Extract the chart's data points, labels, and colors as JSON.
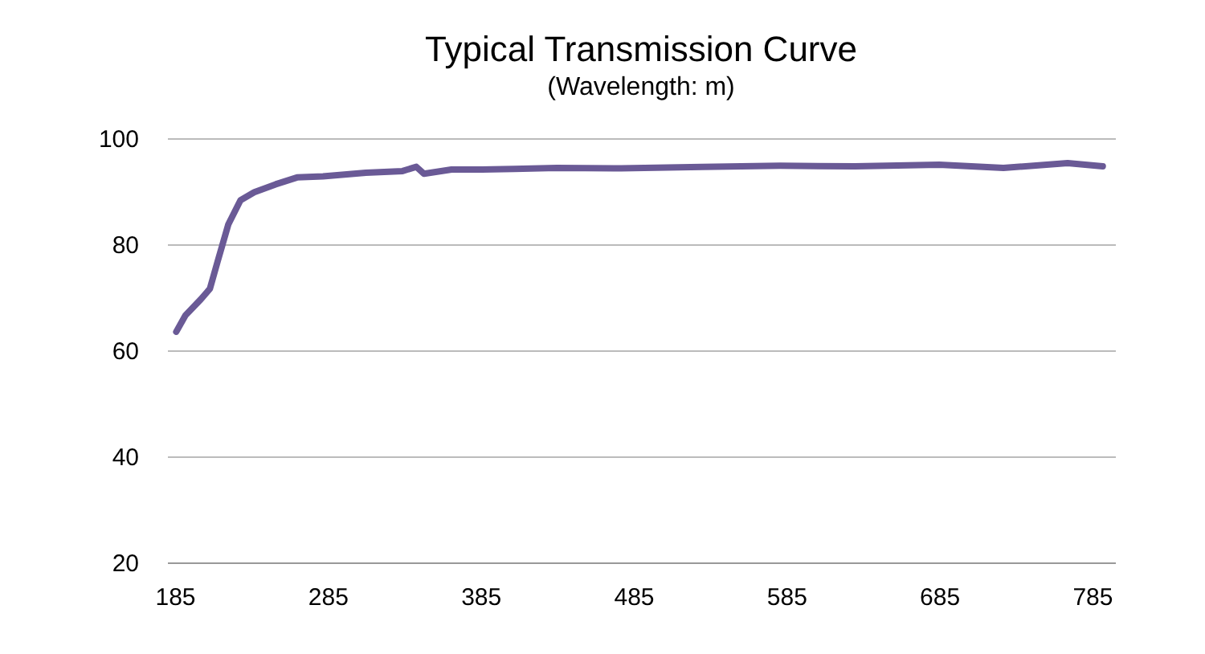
{
  "chart_data": {
    "type": "line",
    "title": "Typical Transmission Curve",
    "subtitle": "(Wavelength: m)",
    "x": [
      186,
      192,
      202,
      208,
      213,
      220,
      228,
      237,
      251,
      265,
      282,
      310,
      334,
      343,
      348,
      366,
      386,
      407,
      435,
      477,
      530,
      581,
      630,
      685,
      727,
      769,
      792
    ],
    "series": [
      {
        "color": "#6a5a96",
        "values": [
          63.5,
          66.6,
          69.6,
          71.6,
          76.7,
          83.7,
          88.3,
          89.8,
          91.3,
          92.6,
          92.8,
          93.5,
          93.8,
          94.6,
          93.3,
          94.1,
          94.1,
          94.2,
          94.4,
          94.3,
          94.6,
          94.8,
          94.7,
          95.0,
          94.4,
          95.3,
          94.7
        ]
      }
    ],
    "xlim": [
      180,
      800
    ],
    "xticks": [
      185,
      285,
      385,
      485,
      585,
      685,
      785
    ],
    "ylim": [
      20,
      100
    ],
    "yticks": [
      20,
      40,
      60,
      80,
      100
    ],
    "grid": "y"
  }
}
